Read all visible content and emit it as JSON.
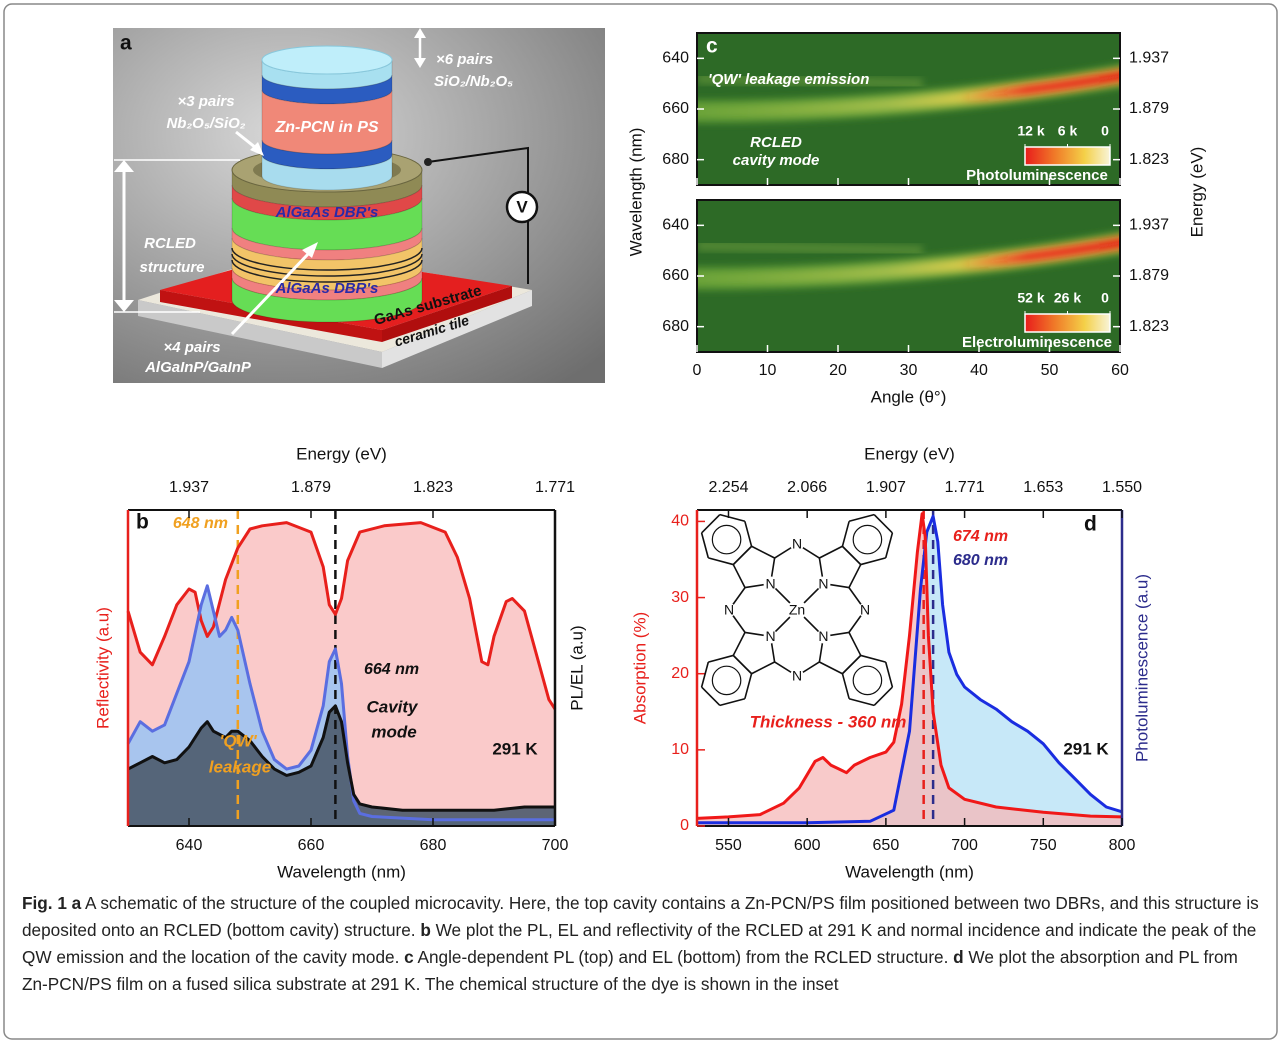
{
  "schematic": {
    "label": "a",
    "top_dbr_pairs": "×6 pairs",
    "top_dbr_material": "SiO₂/Nb₂O₅",
    "bottom_dbr_pairs": "×3 pairs",
    "bottom_dbr_material": "Nb₂O₅/SiO₂",
    "film": "Zn-PCN in PS",
    "dbr_upper": "AlGaAs DBR's",
    "dbr_lower": "AlGaAs DBR's",
    "rcled": [
      "RCLED",
      "structure"
    ],
    "qw_pairs": "×4 pairs",
    "qw_material": "AlGaInP/GaInP",
    "substrate": "GaAs substrate",
    "tile": "ceramic tile",
    "voltage": "V"
  },
  "chart_data": [
    {
      "type": "line",
      "panel_label": "b",
      "x_label": "Wavelength (nm)",
      "x2_label": "Energy (eV)",
      "y_label": "Reflectivity (a.u)",
      "y2_label": "PL/EL (a.u)",
      "xlim": [
        630,
        700
      ],
      "xticks": [
        640,
        660,
        680,
        700
      ],
      "x2ticks": [
        {
          "value": 640,
          "label": "1.937"
        },
        {
          "value": 660,
          "label": "1.879"
        },
        {
          "value": 680,
          "label": "1.823"
        },
        {
          "value": 700,
          "label": "1.771"
        }
      ],
      "ylim": [
        0,
        1
      ],
      "y2lim": [
        0,
        1
      ],
      "y_color": "#e8201c",
      "y2_color": "#111111",
      "series": [
        {
          "color": "#e8201c",
          "fill": "#f9c4c4",
          "x": [
            630,
            632,
            634,
            636,
            638,
            640,
            641,
            642,
            643,
            644,
            646,
            648,
            650,
            652,
            656,
            660,
            662,
            663,
            664,
            665,
            666,
            668,
            672,
            678,
            682,
            684,
            686,
            688,
            689,
            690,
            692,
            693,
            695,
            697,
            699,
            700
          ],
          "values": [
            0.68,
            0.55,
            0.51,
            0.6,
            0.7,
            0.75,
            0.74,
            0.65,
            0.6,
            0.63,
            0.78,
            0.88,
            0.94,
            0.95,
            0.96,
            0.93,
            0.82,
            0.7,
            0.67,
            0.72,
            0.84,
            0.93,
            0.95,
            0.96,
            0.93,
            0.85,
            0.72,
            0.52,
            0.51,
            0.6,
            0.71,
            0.72,
            0.68,
            0.54,
            0.4,
            0.37
          ]
        },
        {
          "axis": "y2",
          "color": "#5a6ee0",
          "fill": "#9fc4f2",
          "x": [
            630,
            632,
            634,
            636,
            638,
            640,
            642,
            643,
            644,
            645,
            646,
            647,
            648,
            650,
            652,
            654,
            656,
            658,
            660,
            662,
            663,
            664,
            665,
            666,
            667,
            668,
            670,
            680,
            690,
            700
          ],
          "values": [
            0.26,
            0.33,
            0.3,
            0.32,
            0.42,
            0.52,
            0.7,
            0.76,
            0.68,
            0.6,
            0.62,
            0.66,
            0.62,
            0.45,
            0.3,
            0.21,
            0.18,
            0.19,
            0.24,
            0.38,
            0.52,
            0.56,
            0.45,
            0.22,
            0.08,
            0.04,
            0.03,
            0.02,
            0.02,
            0.02
          ]
        },
        {
          "axis": "y2",
          "color": "#111111",
          "fill": "#4b5a6c",
          "x": [
            630,
            632,
            634,
            636,
            638,
            640,
            642,
            643,
            644,
            646,
            647,
            648,
            650,
            652,
            654,
            656,
            658,
            660,
            662,
            663,
            664,
            665,
            666,
            667,
            668,
            670,
            675,
            680,
            690,
            695,
            700
          ],
          "values": [
            0.18,
            0.2,
            0.22,
            0.2,
            0.21,
            0.25,
            0.31,
            0.33,
            0.3,
            0.28,
            0.3,
            0.3,
            0.27,
            0.22,
            0.18,
            0.16,
            0.17,
            0.19,
            0.28,
            0.36,
            0.38,
            0.33,
            0.2,
            0.1,
            0.07,
            0.06,
            0.05,
            0.05,
            0.05,
            0.06,
            0.06
          ]
        }
      ],
      "vlines": [
        {
          "x": 648,
          "label": "648 nm",
          "color": "#f0a020"
        },
        {
          "x": 664,
          "label": "664 nm",
          "color": "#111111"
        }
      ],
      "annotations": [
        [
          "'QW'",
          "leakage"
        ],
        [
          "Cavity",
          "mode"
        ],
        [
          "291 K"
        ]
      ]
    },
    {
      "type": "heatmap",
      "x_label": "Angle (θ°)",
      "y_label": "Wavelength (nm)",
      "y2_label": "Energy (eV)",
      "xlim": [
        0,
        60
      ],
      "xticks": [
        0,
        10,
        20,
        30,
        40,
        50,
        60
      ],
      "ylim": [
        630,
        690
      ],
      "y_inverted": true,
      "yticks": [
        640,
        660,
        680
      ],
      "y2ticks": [
        {
          "value": 640,
          "label": "1.937"
        },
        {
          "value": 660,
          "label": "1.879"
        },
        {
          "value": 680,
          "label": "1.823"
        }
      ],
      "panels": [
        {
          "panel_label": "c",
          "title": "Photoluminescence",
          "clim": [
            0,
            12000
          ],
          "colorbar_ticks": [
            {
              "value": 12000,
              "label": "12 k"
            },
            {
              "value": 6000,
              "label": "6 k"
            },
            {
              "value": 0,
              "label": "0"
            }
          ],
          "annotations": [
            [
              "'QW' leakage emission"
            ],
            [
              "RCLED",
              "cavity mode"
            ]
          ]
        },
        {
          "title": "Electroluminescence",
          "clim": [
            0,
            52000
          ],
          "colorbar_ticks": [
            {
              "value": 52000,
              "label": "52 k"
            },
            {
              "value": 26000,
              "label": "26 k"
            },
            {
              "value": 0,
              "label": "0"
            }
          ]
        }
      ]
    },
    {
      "type": "line",
      "panel_label": "d",
      "x_label": "Wavelength (nm)",
      "x2_label": "Energy (eV)",
      "y_label": "Absorption (%)",
      "y2_label": "Photoluminescence (a.u)",
      "xlim": [
        530,
        800
      ],
      "xticks": [
        550,
        600,
        650,
        700,
        750,
        800
      ],
      "x2ticks": [
        {
          "value": 550,
          "label": "2.254"
        },
        {
          "value": 600,
          "label": "2.066"
        },
        {
          "value": 650,
          "label": "1.907"
        },
        {
          "value": 700,
          "label": "1.771"
        },
        {
          "value": 750,
          "label": "1.653"
        },
        {
          "value": 800,
          "label": "1.550"
        }
      ],
      "ylim": [
        0,
        41.5
      ],
      "yticks": [
        0,
        10,
        20,
        30,
        40
      ],
      "y2lim": [
        0,
        1
      ],
      "y_color": "#e8201c",
      "y2_color": "#2c2c8c",
      "series": [
        {
          "axis": "y2",
          "color": "#1a2de0",
          "fill": "#b4e0f6",
          "x": [
            530,
            600,
            640,
            655,
            665,
            672,
            676,
            680,
            683,
            686,
            690,
            695,
            700,
            710,
            720,
            730,
            740,
            750,
            760,
            770,
            780,
            790,
            800
          ],
          "values": [
            0.01,
            0.01,
            0.015,
            0.05,
            0.3,
            0.75,
            0.93,
            0.98,
            0.9,
            0.7,
            0.55,
            0.48,
            0.44,
            0.4,
            0.37,
            0.33,
            0.3,
            0.26,
            0.2,
            0.15,
            0.1,
            0.06,
            0.045
          ]
        },
        {
          "color": "#f01818",
          "fill": "#f6b8b8",
          "x": [
            530,
            550,
            570,
            585,
            595,
            605,
            610,
            615,
            620,
            625,
            630,
            640,
            650,
            655,
            660,
            665,
            670,
            673,
            675,
            677,
            680,
            685,
            690,
            700,
            720,
            750,
            780,
            800
          ],
          "values": [
            1,
            1.2,
            1.5,
            3,
            5,
            8.5,
            9,
            8,
            7.5,
            7,
            8,
            9,
            9.7,
            11,
            16,
            25,
            36,
            41,
            38,
            25,
            15,
            8,
            5,
            3.5,
            2.5,
            1.8,
            1.3,
            1.2
          ]
        }
      ],
      "vlines": [
        {
          "x": 674,
          "label": "674 nm",
          "color": "#e8201c"
        },
        {
          "x": 680,
          "label": "680 nm",
          "color": "#2c2c8c"
        }
      ],
      "annotations": [
        [
          "Thickness - 360 nm"
        ],
        [
          "291 K"
        ]
      ],
      "inset": {
        "atoms": [
          "N",
          "N",
          "N",
          "N",
          "N",
          "N",
          "N",
          "N",
          "Zn"
        ]
      }
    }
  ],
  "caption": [
    {
      "text": "Fig. 1 a",
      "bold": true
    },
    {
      "text": " A schematic of the structure of the coupled microcavity. Here, the top cavity contains a Zn-PCN/PS film positioned between two DBRs, and this structure is deposited onto an RCLED (bottom cavity) structure. ",
      "bold": false
    },
    {
      "text": "b",
      "bold": true
    },
    {
      "text": " We plot the PL, EL and reflectivity of the RCLED at 291 K and normal incidence and indicate the peak of the QW emission and the location of the cavity mode. ",
      "bold": false
    },
    {
      "text": "c",
      "bold": true
    },
    {
      "text": " Angle-dependent PL (top) and EL (bottom) from the RCLED structure. ",
      "bold": false
    },
    {
      "text": "d",
      "bold": true
    },
    {
      "text": " We plot the absorption and PL from Zn-PCN/PS film on a fused silica substrate at 291 K. The chemical structure of the dye is shown in the inset",
      "bold": false
    }
  ]
}
